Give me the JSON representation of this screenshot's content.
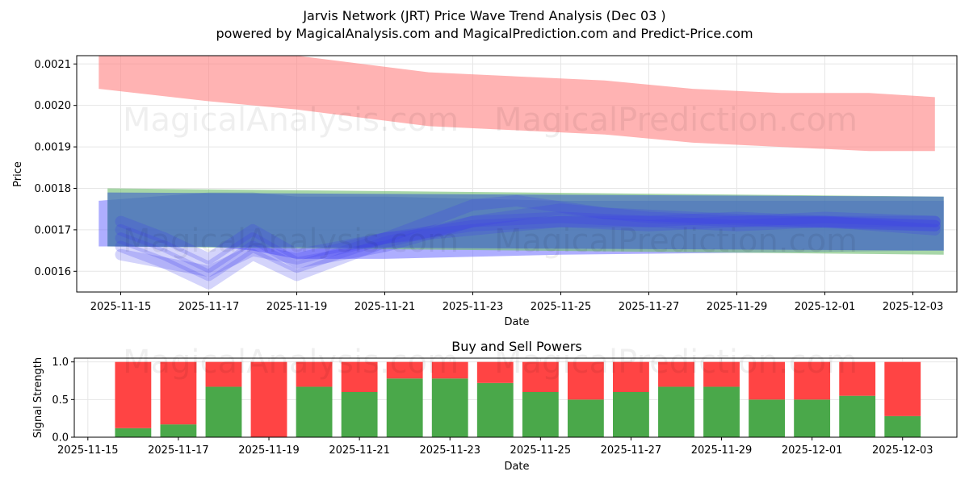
{
  "title": "Jarvis Network (JRT) Price Wave Trend Analysis (Dec 03 )",
  "subtitle": "powered by MagicalAnalysis.com and MagicalPrediction.com and Predict-Price.com",
  "watermarks": [
    "MagicalAnalysis.com",
    "MagicalPrediction.com"
  ],
  "chart_data": [
    {
      "type": "area",
      "title": "",
      "xlabel": "Date",
      "ylabel": "Price",
      "xlim": [
        "2025-11-14",
        "2025-12-04"
      ],
      "ylim": [
        0.00155,
        0.00212
      ],
      "grid": true,
      "x_ticks": [
        "2025-11-15",
        "2025-11-17",
        "2025-11-19",
        "2025-11-21",
        "2025-11-23",
        "2025-11-25",
        "2025-11-27",
        "2025-11-29",
        "2025-12-01",
        "2025-12-03"
      ],
      "y_ticks": [
        "0.0016",
        "0.0017",
        "0.0018",
        "0.0019",
        "0.0020",
        "0.0021"
      ],
      "colors": {
        "red_band": "#ff8080",
        "green_band": "#6dbb6d",
        "blue_band": "#3355cc",
        "blue_wave": "#3a3aee"
      },
      "red_band": {
        "x": [
          "2025-11-14.5",
          "2025-11-17",
          "2025-11-19",
          "2025-11-22",
          "2025-11-24",
          "2025-11-26",
          "2025-11-28",
          "2025-11-30",
          "2025-12-02",
          "2025-12-03.5"
        ],
        "upper": [
          0.00214,
          0.00213,
          0.00212,
          0.00208,
          0.00207,
          0.00206,
          0.00204,
          0.00203,
          0.00203,
          0.00202
        ],
        "lower": [
          0.00204,
          0.00201,
          0.00199,
          0.00195,
          0.00194,
          0.00193,
          0.00191,
          0.0019,
          0.00189,
          0.00189
        ]
      },
      "green_band": {
        "x": [
          "2025-11-14.7",
          "2025-12-03.7"
        ],
        "upper": [
          0.0018,
          0.00178
        ],
        "lower": [
          0.00166,
          0.00164
        ]
      },
      "blue_band": {
        "x": [
          "2025-11-14.7",
          "2025-12-03.7"
        ],
        "upper": [
          0.00179,
          0.00178
        ],
        "lower": [
          0.00166,
          0.00165
        ]
      },
      "outer_blue_band": {
        "x": [
          "2025-11-14.5",
          "2025-11-17",
          "2025-11-18",
          "2025-11-19",
          "2025-11-21",
          "2025-11-25",
          "2025-12-03.7"
        ],
        "upper": [
          0.00177,
          0.00179,
          0.00179,
          0.00178,
          0.00178,
          0.00177,
          0.00177
        ],
        "lower": [
          0.00166,
          0.00166,
          0.00165,
          0.00163,
          0.00163,
          0.00164,
          0.00165
        ]
      },
      "wave_series": [
        {
          "name": "wave-1",
          "x": [
            "2025-11-15",
            "2025-11-16",
            "2025-11-17",
            "2025-11-18",
            "2025-11-19",
            "2025-11-20",
            "2025-11-21",
            "2025-11-23",
            "2025-11-25",
            "2025-11-27",
            "2025-11-29",
            "2025-12-01",
            "2025-12-03.5"
          ],
          "y": [
            0.00172,
            0.00168,
            0.00163,
            0.0017,
            0.00164,
            0.00166,
            0.00168,
            0.0017,
            0.00172,
            0.00171,
            0.00172,
            0.00172,
            0.00171
          ]
        },
        {
          "name": "wave-2",
          "x": [
            "2025-11-15",
            "2025-11-16",
            "2025-11-17",
            "2025-11-18",
            "2025-11-19",
            "2025-11-21",
            "2025-11-23",
            "2025-11-25",
            "2025-11-27",
            "2025-11-29",
            "2025-12-01",
            "2025-12-03.5"
          ],
          "y": [
            0.0017,
            0.00166,
            0.00161,
            0.00168,
            0.00162,
            0.00166,
            0.00172,
            0.00173,
            0.00172,
            0.00173,
            0.00172,
            0.0017
          ]
        },
        {
          "name": "wave-3",
          "x": [
            "2025-11-15",
            "2025-11-16",
            "2025-11-17",
            "2025-11-18",
            "2025-11-19",
            "2025-11-21",
            "2025-11-23",
            "2025-11-24",
            "2025-11-26",
            "2025-11-28",
            "2025-11-30",
            "2025-12-03.5"
          ],
          "y": [
            0.00168,
            0.00164,
            0.00159,
            0.00166,
            0.00161,
            0.00168,
            0.00176,
            0.00177,
            0.00174,
            0.00173,
            0.00172,
            0.00171
          ]
        },
        {
          "name": "wave-4",
          "x": [
            "2025-11-15",
            "2025-11-16",
            "2025-11-17",
            "2025-11-18",
            "2025-11-19",
            "2025-11-21",
            "2025-11-23",
            "2025-11-25",
            "2025-11-27",
            "2025-11-29",
            "2025-12-01",
            "2025-12-03.5"
          ],
          "y": [
            0.00166,
            0.00162,
            0.00157,
            0.00164,
            0.00159,
            0.00167,
            0.00172,
            0.00175,
            0.00173,
            0.00172,
            0.00173,
            0.00172
          ]
        },
        {
          "name": "wave-5",
          "x": [
            "2025-11-15",
            "2025-11-17",
            "2025-11-18",
            "2025-11-19",
            "2025-11-21",
            "2025-11-23",
            "2025-11-25",
            "2025-11-27",
            "2025-11-29",
            "2025-12-01",
            "2025-12-03.5"
          ],
          "y": [
            0.00164,
            0.0016,
            0.00165,
            0.00163,
            0.00168,
            0.00171,
            0.00172,
            0.00172,
            0.00171,
            0.00172,
            0.00172
          ]
        }
      ]
    },
    {
      "type": "bar",
      "title": "Buy and Sell Powers",
      "xlabel": "Date",
      "ylabel": "Signal Strength",
      "xlim": [
        "2025-11-14.7",
        "2025-12-04.2"
      ],
      "ylim": [
        0,
        1.05
      ],
      "grid": true,
      "x_ticks": [
        "2025-11-15",
        "2025-11-17",
        "2025-11-19",
        "2025-11-21",
        "2025-11-23",
        "2025-11-25",
        "2025-11-27",
        "2025-11-29",
        "2025-12-01",
        "2025-12-03"
      ],
      "y_ticks": [
        "0.0",
        "0.5",
        "1.0"
      ],
      "colors": {
        "buy": "#4aa84a",
        "sell": "#ff4444"
      },
      "categories": [
        "2025-11-16",
        "2025-11-17",
        "2025-11-18",
        "2025-11-19",
        "2025-11-20",
        "2025-11-21",
        "2025-11-22",
        "2025-11-23",
        "2025-11-24",
        "2025-11-25",
        "2025-11-26",
        "2025-11-27",
        "2025-11-28",
        "2025-11-29",
        "2025-11-30",
        "2025-12-01",
        "2025-12-02",
        "2025-12-03"
      ],
      "series": [
        {
          "name": "Buy",
          "values": [
            0.12,
            0.17,
            0.67,
            0.0,
            0.67,
            0.6,
            0.78,
            0.78,
            0.72,
            0.6,
            0.5,
            0.6,
            0.67,
            0.67,
            0.5,
            0.5,
            0.55,
            0.28
          ]
        },
        {
          "name": "Sell",
          "values": [
            0.88,
            0.83,
            0.33,
            1.0,
            0.33,
            0.4,
            0.22,
            0.22,
            0.28,
            0.4,
            0.5,
            0.4,
            0.33,
            0.33,
            0.5,
            0.5,
            0.45,
            0.72
          ]
        }
      ]
    }
  ]
}
